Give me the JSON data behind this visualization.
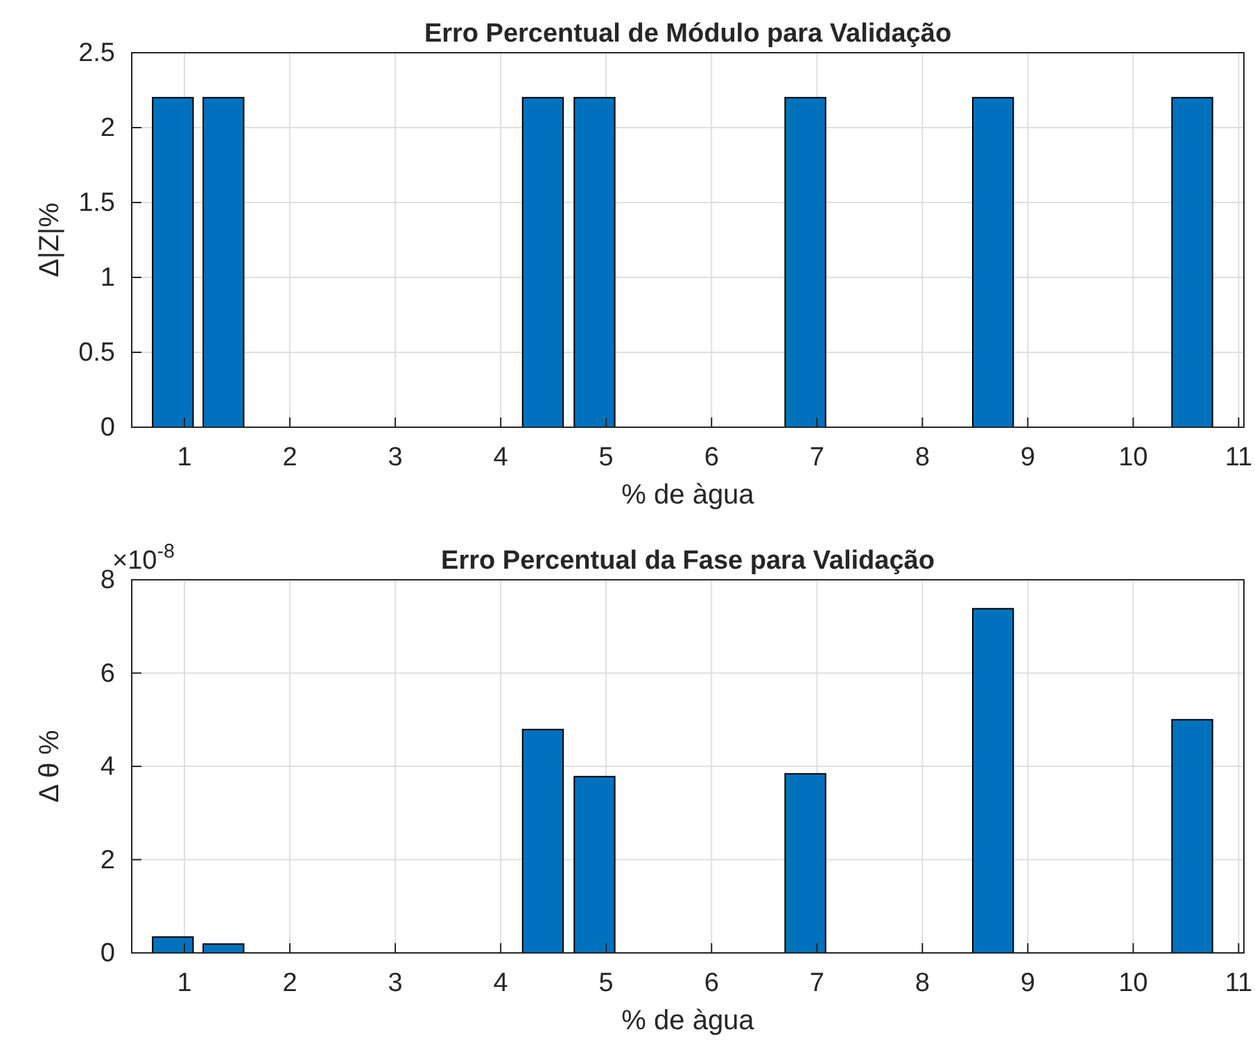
{
  "chart_data": [
    {
      "type": "bar",
      "title": "Erro Percentual de Módulo para Validação",
      "xlabel": "% de àgua",
      "ylabel": "Δ|Z|%",
      "x": [
        0.89,
        1.37,
        4.4,
        4.89,
        6.89,
        8.67,
        10.56
      ],
      "values": [
        2.2,
        2.2,
        2.2,
        2.2,
        2.2,
        2.2,
        2.2
      ],
      "color": "#0072bd",
      "xlim": [
        0.5,
        11.05
      ],
      "xticks": [
        1,
        2,
        3,
        4,
        5,
        6,
        7,
        8,
        9,
        10,
        11
      ],
      "ylim": [
        0,
        2.5
      ],
      "yticks": [
        0,
        0.5,
        1,
        1.5,
        2,
        2.5
      ],
      "grid": true
    },
    {
      "type": "bar",
      "title": "Erro Percentual da Fase para Validação",
      "xlabel": "% de àgua",
      "ylabel": "Δ θ %",
      "annotations": [
        "×10$^{-8}$"
      ],
      "x": [
        0.89,
        1.37,
        4.4,
        4.89,
        6.89,
        8.67,
        10.56
      ],
      "values": [
        0.34,
        0.19,
        4.79,
        3.78,
        3.84,
        7.38,
        5.0
      ],
      "color": "#0072bd",
      "xlim": [
        0.5,
        11.05
      ],
      "xticks": [
        1,
        2,
        3,
        4,
        5,
        6,
        7,
        8,
        9,
        10,
        11
      ],
      "ylim": [
        0,
        8
      ],
      "yticks": [
        0,
        2,
        4,
        6,
        8
      ],
      "grid": true
    }
  ]
}
